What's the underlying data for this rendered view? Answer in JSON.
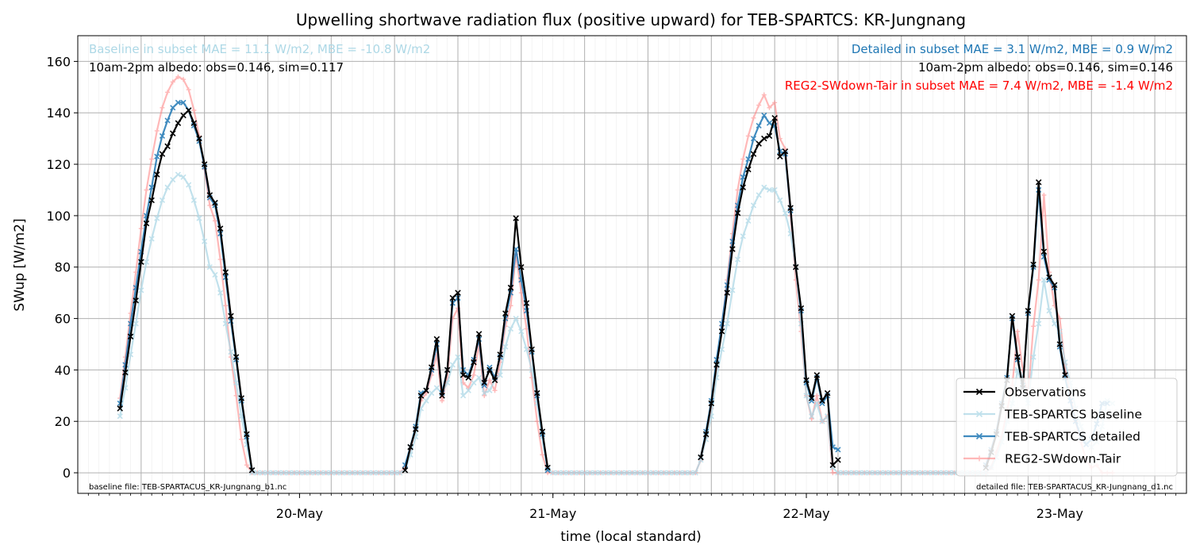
{
  "chart_data": {
    "type": "line",
    "title": "Upwelling shortwave radiation flux (positive upward) for TEB-SPARTCS: KR-Jungnang",
    "xlabel": "time (local standard)",
    "ylabel": "SWup [W/m2]",
    "xlim": [
      "2019-05-19T03:00",
      "2019-05-23T12:00"
    ],
    "ylim": [
      -8,
      170
    ],
    "yticks": [
      0,
      20,
      40,
      60,
      80,
      100,
      120,
      140,
      160
    ],
    "xticks": [
      {
        "t": "2019-05-20T00:00",
        "label": "20-May"
      },
      {
        "t": "2019-05-21T00:00",
        "label": "21-May"
      },
      {
        "t": "2019-05-22T00:00",
        "label": "22-May"
      },
      {
        "t": "2019-05-23T00:00",
        "label": "23-May"
      }
    ],
    "grid": true,
    "legend_position": "lower-right",
    "annotations": {
      "baseline_stats": "Baseline in subset MAE = 11.1 W/m2, MBE = -10.8 W/m2",
      "baseline_albedo": "10am-2pm albedo: obs=0.146, sim=0.117",
      "detailed_stats": "Detailed in subset MAE = 3.1 W/m2, MBE = 0.9 W/m2",
      "detailed_albedo": "10am-2pm albedo: obs=0.146, sim=0.146",
      "reg2_stats": "REG2-SWdown-Tair in subset MAE = 7.4 W/m2, MBE = -1.4 W/m2",
      "baseline_file": "baseline file: TEB-SPARTACUS_KR-Jungnang_b1.nc",
      "detailed_file": "detailed file: TEB-SPARTACUS_KR-Jungnang_d1.nc"
    },
    "colors": {
      "baseline_text": "#add8e6",
      "detailed_text": "#1f77b4",
      "reg2_text": "#ff0000",
      "black_text": "#000000"
    },
    "series": [
      {
        "name": "Observations",
        "color": "#000000",
        "marker": "x",
        "start": "2019-05-19T07:00",
        "step_minutes": 30,
        "values": [
          25,
          39,
          53,
          67,
          82,
          97,
          106,
          116,
          124,
          127,
          132,
          136,
          139,
          141,
          136,
          130,
          120,
          108,
          105,
          95,
          78,
          61,
          45,
          29,
          15,
          1,
          null,
          null,
          null,
          null,
          null,
          null,
          null,
          null,
          null,
          null,
          null,
          null,
          null,
          null,
          null,
          null,
          null,
          null,
          null,
          null,
          null,
          null,
          null,
          null,
          null,
          null,
          null,
          null,
          1,
          10,
          17,
          30,
          32,
          41,
          52,
          30,
          40,
          68,
          70,
          38,
          37,
          43,
          54,
          35,
          40,
          36,
          46,
          62,
          72,
          99,
          80,
          66,
          48,
          31,
          16,
          2,
          null,
          null,
          null,
          null,
          null,
          null,
          null,
          null,
          null,
          null,
          null,
          null,
          null,
          null,
          null,
          null,
          null,
          null,
          null,
          null,
          null,
          null,
          null,
          null,
          null,
          null,
          null,
          null,
          6,
          15,
          27,
          42,
          55,
          70,
          87,
          101,
          111,
          118,
          124,
          128,
          130,
          131,
          138,
          123,
          125,
          103,
          80,
          64,
          36,
          29,
          38,
          28,
          31,
          3,
          5,
          null,
          null,
          null,
          null,
          null,
          null,
          null,
          null,
          null,
          null,
          null,
          null,
          null,
          null,
          null,
          null,
          null,
          null,
          null,
          null,
          null,
          null,
          null,
          null,
          null,
          null,
          null,
          2,
          8,
          15,
          26,
          36,
          61,
          45,
          33,
          63,
          81,
          113,
          86,
          76,
          73,
          50,
          38
        ]
      },
      {
        "name": "TEB-SPARTCS baseline",
        "color": "#add8e6",
        "marker": "x",
        "start": "2019-05-19T07:00",
        "step_minutes": 30,
        "values": [
          22,
          33,
          46,
          58,
          71,
          82,
          91,
          99,
          106,
          111,
          114,
          116,
          115,
          112,
          106,
          99,
          90,
          80,
          77,
          70,
          58,
          47,
          35,
          22,
          11,
          0,
          0,
          0,
          0,
          0,
          0,
          0,
          0,
          0,
          0,
          0,
          0,
          0,
          0,
          0,
          0,
          0,
          0,
          0,
          0,
          0,
          0,
          0,
          0,
          0,
          0,
          0,
          0,
          0,
          1,
          7,
          14,
          25,
          28,
          31,
          33,
          31,
          35,
          42,
          45,
          30,
          32,
          35,
          37,
          31,
          32,
          36,
          38,
          49,
          56,
          60,
          55,
          48,
          40,
          27,
          14,
          1,
          0,
          0,
          0,
          0,
          0,
          0,
          0,
          0,
          0,
          0,
          0,
          0,
          0,
          0,
          0,
          0,
          0,
          0,
          0,
          0,
          0,
          0,
          0,
          0,
          0,
          0,
          0,
          0,
          5,
          13,
          22,
          37,
          48,
          58,
          71,
          83,
          92,
          98,
          104,
          108,
          111,
          110,
          110,
          106,
          101,
          93,
          80,
          58,
          30,
          22,
          27,
          20,
          22,
          2,
          0,
          0,
          0,
          0,
          0,
          0,
          0,
          0,
          0,
          0,
          0,
          0,
          0,
          0,
          0,
          0,
          0,
          0,
          0,
          0,
          0,
          0,
          0,
          0,
          0,
          0,
          0,
          0,
          0,
          2,
          6,
          12,
          20,
          27,
          40,
          33,
          27,
          45,
          58,
          75,
          63,
          58,
          55,
          43,
          35,
          25,
          18,
          12,
          10,
          12,
          18,
          28,
          27
        ]
      },
      {
        "name": "TEB-SPARTCS detailed",
        "color": "#1f77b4",
        "marker": "x",
        "start": "2019-05-19T07:00",
        "step_minutes": 30,
        "values": [
          27,
          42,
          58,
          72,
          86,
          100,
          111,
          123,
          131,
          137,
          142,
          144,
          144,
          141,
          135,
          129,
          119,
          107,
          104,
          93,
          76,
          59,
          44,
          28,
          14,
          1,
          null,
          null,
          null,
          null,
          null,
          null,
          null,
          null,
          null,
          null,
          null,
          null,
          null,
          null,
          null,
          null,
          null,
          null,
          null,
          null,
          null,
          null,
          null,
          null,
          null,
          null,
          null,
          null,
          3,
          10,
          18,
          31,
          32,
          40,
          50,
          31,
          40,
          66,
          68,
          40,
          38,
          44,
          52,
          34,
          41,
          37,
          45,
          60,
          70,
          87,
          75,
          63,
          47,
          30,
          15,
          1,
          null,
          null,
          null,
          null,
          null,
          null,
          null,
          null,
          null,
          null,
          null,
          null,
          null,
          null,
          null,
          null,
          null,
          null,
          null,
          null,
          null,
          null,
          null,
          null,
          null,
          null,
          null,
          null,
          6,
          16,
          28,
          44,
          58,
          73,
          90,
          104,
          115,
          122,
          130,
          135,
          139,
          136,
          135,
          125,
          124,
          102,
          80,
          63,
          35,
          28,
          37,
          27,
          30,
          10,
          9,
          null,
          null,
          null,
          null,
          null,
          null,
          null,
          null,
          null,
          null,
          null,
          null,
          null,
          null,
          null,
          null,
          null,
          null,
          null,
          null,
          null,
          null,
          null,
          null,
          null,
          null,
          null,
          3,
          9,
          16,
          27,
          37,
          60,
          44,
          34,
          62,
          80,
          110,
          84,
          75,
          72,
          49,
          37,
          28,
          20,
          14,
          11,
          13,
          19,
          27,
          27
        ]
      },
      {
        "name": "REG2-SWdown-Tair",
        "color": "#ff7f7f",
        "marker": "+",
        "start": "2019-05-19T07:00",
        "step_minutes": 30,
        "values": [
          29,
          45,
          62,
          78,
          95,
          110,
          122,
          133,
          142,
          148,
          152,
          154,
          153,
          149,
          141,
          131,
          118,
          104,
          98,
          83,
          65,
          45,
          30,
          13,
          3,
          0,
          0,
          0,
          0,
          0,
          0,
          0,
          0,
          0,
          0,
          0,
          0,
          0,
          0,
          0,
          0,
          0,
          0,
          0,
          0,
          0,
          0,
          0,
          0,
          0,
          0,
          0,
          0,
          0,
          2,
          9,
          17,
          28,
          31,
          38,
          46,
          28,
          37,
          60,
          64,
          35,
          33,
          38,
          50,
          30,
          36,
          32,
          43,
          57,
          65,
          85,
          70,
          56,
          37,
          20,
          7,
          0,
          0,
          0,
          0,
          0,
          0,
          0,
          0,
          0,
          0,
          0,
          0,
          0,
          0,
          0,
          0,
          0,
          0,
          0,
          0,
          0,
          0,
          0,
          0,
          0,
          0,
          0,
          0,
          0,
          5,
          14,
          25,
          41,
          57,
          75,
          93,
          110,
          122,
          131,
          138,
          143,
          147,
          142,
          144,
          130,
          126,
          100,
          75,
          55,
          30,
          21,
          30,
          20,
          22,
          0,
          0,
          0,
          0,
          0,
          0,
          0,
          0,
          0,
          0,
          0,
          0,
          0,
          0,
          0,
          0,
          0,
          0,
          0,
          0,
          0,
          0,
          0,
          0,
          0,
          0,
          0,
          0,
          0,
          0,
          2,
          8,
          14,
          24,
          34,
          55,
          40,
          30,
          57,
          75,
          108,
          78,
          65,
          60,
          42,
          30,
          20,
          12,
          5,
          2,
          3,
          0,
          0,
          0
        ]
      }
    ]
  }
}
